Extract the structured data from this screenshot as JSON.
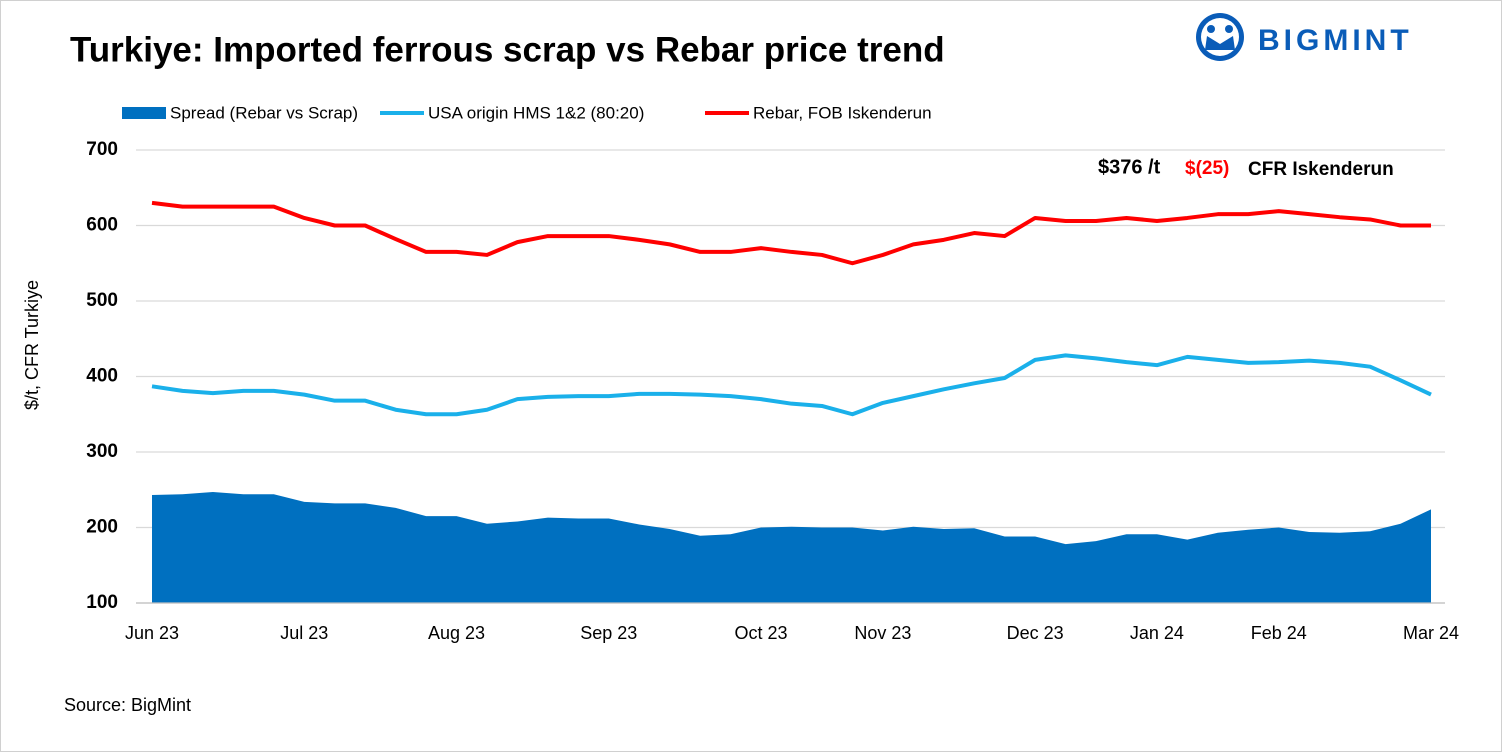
{
  "chart_data": {
    "type": "line",
    "title": "Turkiye: Imported ferrous scrap vs Rebar price trend",
    "brand": "BIGMINT",
    "y_label": "$/t, CFR Turkiye",
    "source": "Source: BigMint",
    "annotations": [
      "$376 /t",
      "$(25)",
      "CFR Iskenderun"
    ],
    "categories": [
      "Jun 23",
      null,
      null,
      null,
      null,
      "Jul 23",
      null,
      null,
      null,
      null,
      "Aug 23",
      null,
      null,
      null,
      null,
      "Sep 23",
      null,
      null,
      null,
      null,
      "Oct 23",
      null,
      null,
      null,
      "Nov 23",
      null,
      null,
      null,
      null,
      "Dec 23",
      null,
      null,
      null,
      "Jan 24",
      null,
      null,
      null,
      "Feb 24",
      null,
      null,
      null,
      null,
      "Mar 24"
    ],
    "series": [
      {
        "name": "Spread (Rebar vs Scrap)",
        "kind": "area",
        "color": "#0070c0",
        "values": [
          243,
          244,
          247,
          244,
          244,
          234,
          232,
          232,
          226,
          215,
          215,
          205,
          208,
          213,
          212,
          212,
          204,
          198,
          189,
          191,
          200,
          201,
          200,
          200,
          196,
          201,
          198,
          199,
          188,
          188,
          178,
          182,
          191,
          191,
          184,
          193,
          197,
          200,
          194,
          193,
          195,
          205,
          224
        ]
      },
      {
        "name": "USA origin HMS 1&2 (80:20)",
        "kind": "line",
        "color": "#1ab0ea",
        "values": [
          387,
          381,
          378,
          381,
          381,
          376,
          368,
          368,
          356,
          350,
          350,
          356,
          370,
          373,
          374,
          374,
          377,
          377,
          376,
          374,
          370,
          364,
          361,
          350,
          365,
          374,
          383,
          391,
          398,
          422,
          428,
          424,
          419,
          415,
          426,
          422,
          418,
          419,
          421,
          418,
          413,
          395,
          376
        ]
      },
      {
        "name": "Rebar, FOB Iskenderun",
        "kind": "line",
        "color": "#ff0000",
        "values": [
          630,
          625,
          625,
          625,
          625,
          610,
          600,
          600,
          582,
          565,
          565,
          561,
          578,
          586,
          586,
          586,
          581,
          575,
          565,
          565,
          570,
          565,
          561,
          550,
          561,
          575,
          581,
          590,
          586,
          610,
          606,
          606,
          610,
          606,
          610,
          615,
          615,
          619,
          615,
          611,
          608,
          600,
          600
        ]
      }
    ],
    "ylim": [
      100,
      700
    ],
    "yticks": [
      100,
      200,
      300,
      400,
      500,
      600,
      700
    ],
    "grid": true
  }
}
